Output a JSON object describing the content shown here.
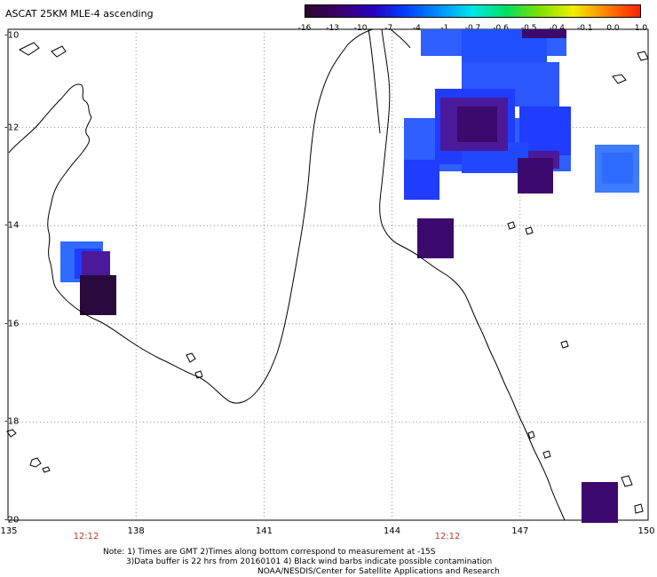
{
  "title": "ASCAT 25KM MLE-4 ascending",
  "colorbar": {
    "colors": [
      "#2a0a2a",
      "#3b006b",
      "#2a00c0",
      "#0040ff",
      "#0090ff",
      "#00e8e8",
      "#00e060",
      "#80e000",
      "#f0f000",
      "#ff8000",
      "#ff2000"
    ],
    "labels": [
      "-16",
      "-13",
      "-10",
      "-7",
      "-4",
      "-1",
      "-0.7",
      "-0.6",
      "-0.5",
      "-0.4",
      "-0.1",
      "0.0",
      "1.0"
    ]
  },
  "axes": {
    "lon_ticks": [
      "135",
      "138",
      "141",
      "144",
      "147",
      "150"
    ],
    "lat_ticks": [
      "-10",
      "-12",
      "-14",
      "-16",
      "-18",
      "-20"
    ],
    "time_labels": [
      "12:12",
      "12:12"
    ]
  },
  "notes": [
    "Note: 1) Times are GMT 2)Times along bottom correspond to measurement at -15S",
    "3)Data buffer is 22 hrs from 20160101 4) Black wind barbs indicate possible contamination",
    "NOAA/NESDIS/Center for Satellite Applications and Research"
  ],
  "colors": {
    "dark_purple": "#2a0a3c",
    "purple": "#3c0a6e",
    "violet": "#4a1a9a",
    "blue": "#1f3cff",
    "mid_blue": "#2f5fff",
    "light_blue": "#3d7bff",
    "land_outline": "#000000",
    "grid": "#555555"
  }
}
